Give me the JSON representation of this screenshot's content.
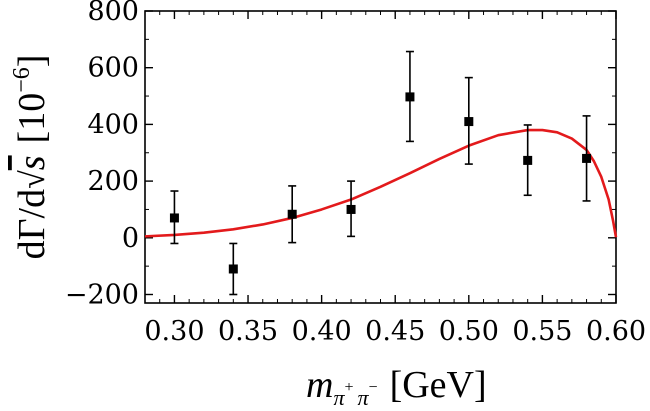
{
  "chart_data": {
    "type": "scatter",
    "title": "",
    "xlabel": "m_{π+ π−} [GeV]",
    "ylabel": "dΓ/d√s [10^−6]",
    "xlabel_parts": {
      "m": "m",
      "sub": "π",
      "sup1": "+",
      "sub2": "π",
      "sup2": "−",
      "unit": "[GeV]"
    },
    "ylabel_parts": {
      "prefix": "dΓ/d",
      "radicand": "s",
      "unit_open": "[10",
      "exp": "−6",
      "unit_close": "]"
    },
    "xlim": [
      0.28,
      0.6
    ],
    "ylim": [
      -230,
      800
    ],
    "x_ticks": [
      {
        "value": 0.3,
        "label": "0.30"
      },
      {
        "value": 0.35,
        "label": "0.35"
      },
      {
        "value": 0.4,
        "label": "0.40"
      },
      {
        "value": 0.45,
        "label": "0.45"
      },
      {
        "value": 0.5,
        "label": "0.50"
      },
      {
        "value": 0.55,
        "label": "0.55"
      },
      {
        "value": 0.6,
        "label": "0.60"
      }
    ],
    "y_ticks": [
      {
        "value": -200,
        "label": "−200"
      },
      {
        "value": 0,
        "label": "0"
      },
      {
        "value": 200,
        "label": "200"
      },
      {
        "value": 400,
        "label": "400"
      },
      {
        "value": 600,
        "label": "600"
      },
      {
        "value": 800,
        "label": "800"
      }
    ],
    "grid": false,
    "series": [
      {
        "type": "scatter-errorbar",
        "color": "#000000",
        "marker": "square",
        "points": [
          {
            "x": 0.3,
            "y": 70,
            "err_low": 90,
            "err_high": 95
          },
          {
            "x": 0.34,
            "y": -110,
            "err_low": 90,
            "err_high": 90
          },
          {
            "x": 0.38,
            "y": 83,
            "err_low": 100,
            "err_high": 100
          },
          {
            "x": 0.42,
            "y": 100,
            "err_low": 95,
            "err_high": 100
          },
          {
            "x": 0.46,
            "y": 497,
            "err_low": 157,
            "err_high": 160
          },
          {
            "x": 0.5,
            "y": 410,
            "err_low": 150,
            "err_high": 155
          },
          {
            "x": 0.54,
            "y": 273,
            "err_low": 123,
            "err_high": 125
          },
          {
            "x": 0.58,
            "y": 280,
            "err_low": 150,
            "err_high": 150
          }
        ]
      },
      {
        "type": "line",
        "color": "#e31a1c",
        "x": [
          0.28,
          0.3,
          0.32,
          0.34,
          0.36,
          0.38,
          0.4,
          0.42,
          0.44,
          0.46,
          0.48,
          0.5,
          0.52,
          0.54,
          0.55,
          0.56,
          0.57,
          0.58,
          0.585,
          0.59,
          0.595,
          0.598,
          0.6
        ],
        "y": [
          5,
          10,
          18,
          30,
          47,
          70,
          100,
          135,
          180,
          228,
          278,
          325,
          362,
          380,
          380,
          372,
          350,
          310,
          270,
          215,
          135,
          60,
          2
        ]
      }
    ]
  }
}
